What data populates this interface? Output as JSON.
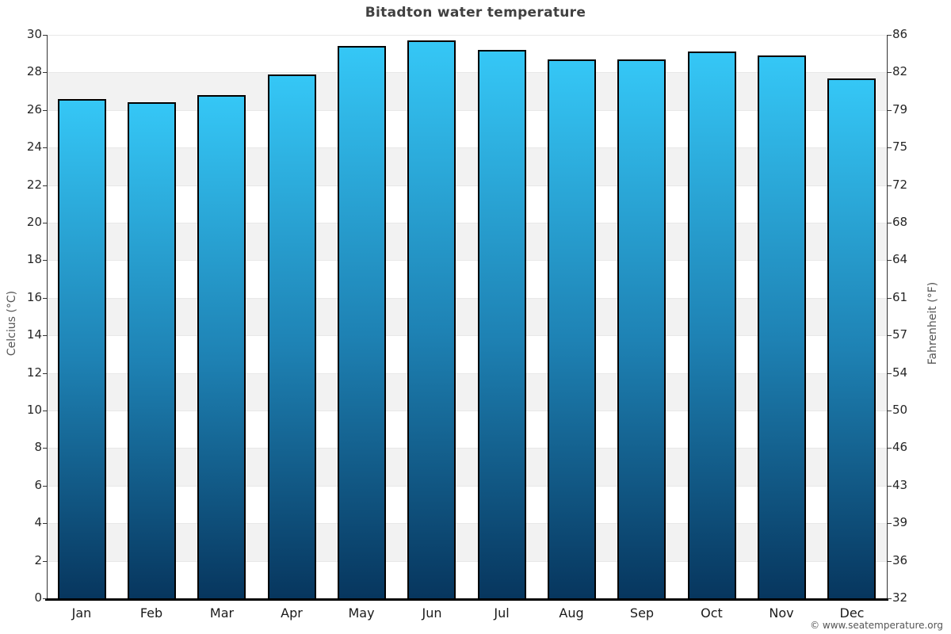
{
  "title": "Bitadton water temperature",
  "footer": "© www.seatemperature.org",
  "chart_data": {
    "type": "bar",
    "title": "Bitadton water temperature",
    "categories": [
      "Jan",
      "Feb",
      "Mar",
      "Apr",
      "May",
      "Jun",
      "Jul",
      "Aug",
      "Sep",
      "Oct",
      "Nov",
      "Dec"
    ],
    "values": [
      26.6,
      26.4,
      26.8,
      27.9,
      29.4,
      29.7,
      29.2,
      28.7,
      28.7,
      29.1,
      28.9,
      27.7
    ],
    "unit": "°C",
    "ylabel_left": "Celcius (°C)",
    "ylabel_right": "Fahrenheit (°F)",
    "ylim": [
      0,
      30
    ],
    "ytick_step": 2,
    "yticks_celsius": [
      0,
      2,
      4,
      6,
      8,
      10,
      12,
      14,
      16,
      18,
      20,
      22,
      24,
      26,
      28,
      30
    ],
    "yticks_fahrenheit": [
      32,
      36,
      39,
      43,
      46,
      50,
      54,
      57,
      61,
      64,
      68,
      72,
      75,
      79,
      82,
      86
    ],
    "grid": true,
    "legend": "none",
    "colors": {
      "bar_gradient_top": "#35c7f6",
      "bar_gradient_mid": "#1e82b4",
      "bar_gradient_bottom": "#07365e",
      "bar_border": "#000000",
      "plot_band": "#f2f2f2",
      "gridline": "#e8e8e8",
      "axis_line": "#333333",
      "baseline": "#000000",
      "title_text": "#404040",
      "tick_text": "#262626",
      "axis_label_text": "#555555",
      "footer_text": "#555555"
    }
  }
}
